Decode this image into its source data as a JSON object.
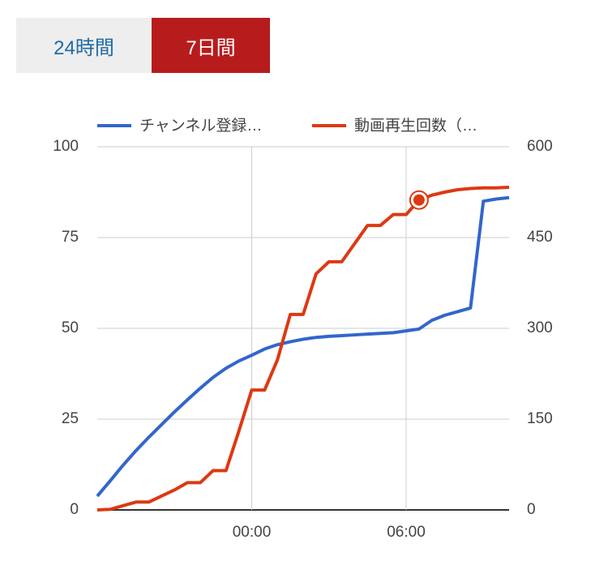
{
  "tabs": [
    "24時間",
    "7日間"
  ],
  "chart_data": {
    "type": "line",
    "x": [
      -6,
      -5.5,
      -5,
      -4.5,
      -4,
      -3.5,
      -3,
      -2.5,
      -2,
      -1.5,
      -1,
      -0.5,
      0,
      0.5,
      1,
      1.5,
      2,
      2.5,
      3,
      3.5,
      4,
      4.5,
      5,
      5.5,
      6,
      6.5,
      7,
      7.5,
      8,
      8.5,
      9,
      9.5,
      10
    ],
    "xlim": [
      -6,
      10
    ],
    "xticks": [
      {
        "value": 0,
        "label": "00:00"
      },
      {
        "value": 6,
        "label": "06:00"
      }
    ],
    "ylim": [
      0,
      100
    ],
    "yticks": [
      0,
      25,
      50,
      75,
      100
    ],
    "y2lim": [
      0,
      600
    ],
    "y2ticks": [
      0,
      150,
      300,
      450,
      600
    ],
    "grid": true,
    "legend": "top",
    "selected": {
      "series": 1,
      "index": 25
    },
    "series": [
      {
        "name": "チャンネル登録…",
        "color": "#3366cc",
        "values": [
          3.8,
          8,
          12.3,
          16.3,
          20,
          23.5,
          27,
          30.3,
          33.5,
          36.5,
          39,
          41,
          42.6,
          44.3,
          45.5,
          46.3,
          47,
          47.5,
          47.8,
          48,
          48.2,
          48.4,
          48.6,
          48.8,
          49.3,
          49.8,
          52.2,
          53.6,
          54.6,
          55.6,
          85,
          85.6,
          86
        ]
      },
      {
        "name": "動画再生回数（…",
        "color": "#dc3912",
        "axis": "y2",
        "values": [
          0,
          1,
          7,
          13,
          13,
          23,
          33,
          45,
          45,
          65,
          65,
          130,
          198,
          198,
          248,
          323,
          323,
          390,
          410,
          410,
          440,
          470,
          470,
          488,
          488,
          512,
          520,
          525,
          529,
          531,
          532,
          532,
          533
        ]
      }
    ]
  }
}
